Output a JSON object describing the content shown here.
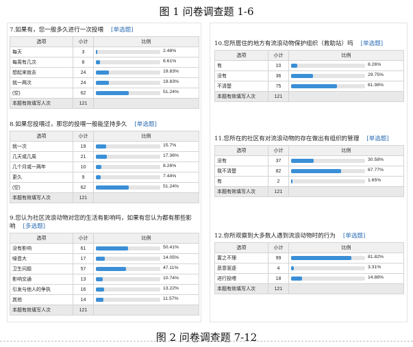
{
  "figure_top": "图 1  问卷调查题 1-6",
  "figure_bottom": "图 2  问卷调查题 7-12",
  "headers": {
    "option": "选项",
    "count": "小计",
    "ratio": "比例"
  },
  "footer_label": "本题有效填写人次",
  "questions": [
    {
      "title": "7.如果有，您一般多久进行一次投喂",
      "tag": "[单选题]",
      "rows": [
        {
          "option": "每天",
          "count": "3",
          "pct": "2.48%",
          "value": 2.48
        },
        {
          "option": "每周有几次",
          "count": "8",
          "pct": "6.61%",
          "value": 6.61
        },
        {
          "option": "想起来就去",
          "count": "24",
          "pct": "19.83%",
          "value": 19.83
        },
        {
          "option": "就一两次",
          "count": "24",
          "pct": "19.83%",
          "value": 19.83
        },
        {
          "option": "(空)",
          "count": "62",
          "pct": "51.24%",
          "value": 51.24
        }
      ],
      "total": "121"
    },
    {
      "title": "8.如果您投喂过，那您的投喂一般能坚持多久",
      "tag": "[单选题]",
      "rows": [
        {
          "option": "就一次",
          "count": "19",
          "pct": "15.7%",
          "value": 15.7
        },
        {
          "option": "几天或几周",
          "count": "21",
          "pct": "17.36%",
          "value": 17.36
        },
        {
          "option": "几个月或一两年",
          "count": "10",
          "pct": "8.26%",
          "value": 8.26
        },
        {
          "option": "更久",
          "count": "9",
          "pct": "7.44%",
          "value": 7.44
        },
        {
          "option": "(空)",
          "count": "62",
          "pct": "51.24%",
          "value": 51.24
        }
      ],
      "total": "121"
    },
    {
      "title": "9.您认为社区流浪动物对您的生活有影响吗，如果有您认为都有那些影响",
      "tag": "[多选题]",
      "rows": [
        {
          "option": "没有影响",
          "count": "61",
          "pct": "50.41%",
          "value": 50.41
        },
        {
          "option": "噪音大",
          "count": "17",
          "pct": "14.05%",
          "value": 14.05
        },
        {
          "option": "卫生问题",
          "count": "57",
          "pct": "47.11%",
          "value": 47.11
        },
        {
          "option": "影响交通",
          "count": "13",
          "pct": "10.74%",
          "value": 10.74
        },
        {
          "option": "引发与他人的争执",
          "count": "16",
          "pct": "13.22%",
          "value": 13.22
        },
        {
          "option": "其他",
          "count": "14",
          "pct": "11.57%",
          "value": 11.57
        }
      ],
      "total": "121"
    },
    {
      "title": "10.您所居住的地方有流浪动物保护组织（救助站）吗",
      "tag": "[单选题]",
      "rows": [
        {
          "option": "有",
          "count": "10",
          "pct": "8.26%",
          "value": 8.26
        },
        {
          "option": "没有",
          "count": "36",
          "pct": "29.75%",
          "value": 29.75
        },
        {
          "option": "不清楚",
          "count": "75",
          "pct": "61.98%",
          "value": 61.98
        }
      ],
      "total": "121"
    },
    {
      "title": "11.您所在的社区有对流浪动物的存在做出有组织的管理",
      "tag": "[单选题]",
      "rows": [
        {
          "option": "没有",
          "count": "37",
          "pct": "30.58%",
          "value": 30.58
        },
        {
          "option": "我不清楚",
          "count": "82",
          "pct": "67.77%",
          "value": 67.77
        },
        {
          "option": "有",
          "count": "2",
          "pct": "1.65%",
          "value": 1.65
        }
      ],
      "total": "121"
    },
    {
      "title": "12.你所观察到大多数人遇到流浪动物时的行为",
      "tag": "[单选题]",
      "rows": [
        {
          "option": "置之不理",
          "count": "99",
          "pct": "81.82%",
          "value": 81.82
        },
        {
          "option": "恶意驱逐",
          "count": "4",
          "pct": "3.31%",
          "value": 3.31
        },
        {
          "option": "进行投喂",
          "count": "18",
          "pct": "14.88%",
          "value": 14.88
        }
      ],
      "total": "121"
    }
  ]
}
